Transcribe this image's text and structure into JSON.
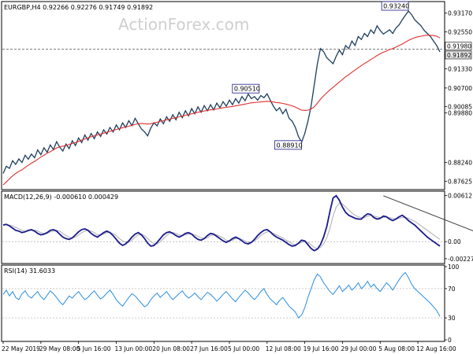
{
  "watermark": "ActionForex.com",
  "chart_data": [
    {
      "panel": "price",
      "type": "line",
      "title": "EURGBP,H4  0.92266 0.92276 0.91749 0.91892",
      "ylim": [
        0.874,
        0.935
      ],
      "yticks": [
        "0.93170",
        "0.92550",
        "0.91330",
        "0.90700",
        "0.90085",
        "0.89880",
        "0.88240",
        "0.87625"
      ],
      "ytick_values": [
        0.9317,
        0.9255,
        0.9133,
        0.907,
        0.90085,
        0.8988,
        0.8824,
        0.87625
      ],
      "price_tags": [
        "0.91980",
        "0.91892"
      ],
      "price_tag_values": [
        0.9198,
        0.91892
      ],
      "hline": 0.9198,
      "annotations": [
        {
          "text": "0.93240",
          "x": 130,
          "y": 0.9324
        },
        {
          "text": "0.90510",
          "x": 82,
          "y": 0.9051
        },
        {
          "text": "0.88910",
          "x": 96,
          "y": 0.8891
        }
      ],
      "series": [
        {
          "color": "#1f3f5f",
          "values": [
            0.8788,
            0.8812,
            0.8805,
            0.883,
            0.8818,
            0.8836,
            0.8824,
            0.8848,
            0.8835,
            0.8852,
            0.884,
            0.8866,
            0.885,
            0.8873,
            0.8858,
            0.8882,
            0.8867,
            0.8893,
            0.8875,
            0.8862,
            0.8885,
            0.887,
            0.8896,
            0.888,
            0.8905,
            0.889,
            0.8915,
            0.8898,
            0.892,
            0.8903,
            0.8925,
            0.891,
            0.8932,
            0.8918,
            0.894,
            0.8925,
            0.8948,
            0.8932,
            0.8955,
            0.894,
            0.8962,
            0.8946,
            0.897,
            0.8952,
            0.8935,
            0.8925,
            0.8912,
            0.8938,
            0.8955,
            0.8945,
            0.8968,
            0.8952,
            0.8975,
            0.896,
            0.8982,
            0.8965,
            0.899,
            0.8972,
            0.8995,
            0.8978,
            0.9002,
            0.8985,
            0.9008,
            0.899,
            0.9012,
            0.8995,
            0.9015,
            0.8998,
            0.902,
            0.9005,
            0.9025,
            0.901,
            0.903,
            0.9015,
            0.9035,
            0.902,
            0.9042,
            0.9028,
            0.905,
            0.9035,
            0.9042,
            0.903,
            0.9045,
            0.9038,
            0.9051,
            0.903,
            0.901,
            0.8995,
            0.9005,
            0.8985,
            0.9,
            0.897,
            0.896,
            0.894,
            0.891,
            0.8891,
            0.892,
            0.896,
            0.901,
            0.908,
            0.915,
            0.92,
            0.919,
            0.917,
            0.916,
            0.915,
            0.9175,
            0.9195,
            0.918,
            0.921,
            0.92,
            0.9225,
            0.921,
            0.924,
            0.923,
            0.925,
            0.924,
            0.9262,
            0.925,
            0.9275,
            0.926,
            0.9248,
            0.9255,
            0.9262,
            0.925,
            0.9268,
            0.9278,
            0.9295,
            0.931,
            0.9324,
            0.9312,
            0.9295,
            0.9285,
            0.9275,
            0.926,
            0.925,
            0.924,
            0.9225,
            0.921,
            0.9189
          ]
        },
        {
          "name": "",
          "color": "#e03030",
          "values": [
            0.875,
            0.876,
            0.877,
            0.878,
            0.8788,
            0.8795,
            0.88,
            0.8808,
            0.8815,
            0.8822,
            0.8828,
            0.8835,
            0.8842,
            0.8848,
            0.8855,
            0.886,
            0.8866,
            0.8872,
            0.8876,
            0.8878,
            0.888,
            0.8884,
            0.8887,
            0.889,
            0.8894,
            0.8898,
            0.8902,
            0.8906,
            0.8909,
            0.8912,
            0.8915,
            0.8918,
            0.8921,
            0.8924,
            0.8927,
            0.893,
            0.8933,
            0.8936,
            0.8939,
            0.8941,
            0.8944,
            0.8947,
            0.895,
            0.8952,
            0.8953,
            0.8952,
            0.8951,
            0.8952,
            0.8955,
            0.8957,
            0.896,
            0.8962,
            0.8965,
            0.8967,
            0.897,
            0.8972,
            0.8975,
            0.8977,
            0.898,
            0.8982,
            0.8985,
            0.8987,
            0.899,
            0.8992,
            0.8994,
            0.8996,
            0.8998,
            0.8999,
            0.9001,
            0.9003,
            0.9005,
            0.9006,
            0.9008,
            0.9009,
            0.9011,
            0.9013,
            0.9015,
            0.9017,
            0.9019,
            0.9021,
            0.9022,
            0.9023,
            0.9024,
            0.9025,
            0.9026,
            0.9025,
            0.9024,
            0.9022,
            0.9021,
            0.9019,
            0.9017,
            0.9014,
            0.9011,
            0.9007,
            0.9002,
            0.8997,
            0.8996,
            0.8997,
            0.9001,
            0.9008,
            0.902,
            0.9033,
            0.9044,
            0.9054,
            0.9064,
            0.9072,
            0.9081,
            0.909,
            0.9098,
            0.9107,
            0.9114,
            0.9122,
            0.9129,
            0.9137,
            0.9144,
            0.9151,
            0.9157,
            0.9164,
            0.917,
            0.9177,
            0.9183,
            0.9188,
            0.9192,
            0.9197,
            0.92,
            0.9205,
            0.921,
            0.9215,
            0.9221,
            0.9227,
            0.9232,
            0.9236,
            0.9239,
            0.9241,
            0.9243,
            0.9244,
            0.9244,
            0.9243,
            0.9241,
            0.9235
          ]
        }
      ]
    },
    {
      "panel": "macd",
      "type": "line",
      "title": "MACD(12,26,9) -0.000610 0.000429",
      "ylim": [
        -0.0027,
        0.0065
      ],
      "yticks": [
        "0.00612",
        "0.00",
        "-0.002273"
      ],
      "ytick_values": [
        0.00612,
        0.0,
        -0.002273
      ],
      "trendline": {
        "x": [
          121,
          150
        ],
        "y": [
          0.0061,
          0.0022
        ]
      },
      "series": [
        {
          "color": "#1a1a8c",
          "values": [
            0.0022,
            0.0023,
            0.0021,
            0.0018,
            0.0015,
            0.0014,
            0.0012,
            0.0013,
            0.0015,
            0.0016,
            0.0014,
            0.0011,
            0.0009,
            0.001,
            0.0012,
            0.0015,
            0.0016,
            0.0014,
            0.001,
            0.0006,
            0.0004,
            0.0003,
            0.0005,
            0.0009,
            0.0013,
            0.0016,
            0.0017,
            0.0015,
            0.0011,
            0.0008,
            0.0006,
            0.0009,
            0.0012,
            0.0014,
            0.0012,
            0.0008,
            0.0003,
            -0.0002,
            -0.0005,
            -0.0003,
            0.0001,
            0.0006,
            0.001,
            0.0012,
            0.0009,
            0.0004,
            -0.0002,
            -0.0006,
            -0.0005,
            -0.0001,
            0.0004,
            0.0009,
            0.0012,
            0.0013,
            0.0011,
            0.0008,
            0.0006,
            0.0008,
            0.0011,
            0.0012,
            0.001,
            0.0006,
            0.0003,
            0.0002,
            0.0004,
            0.0008,
            0.0011,
            0.001,
            0.0007,
            0.0004,
            0.0001,
            -0.0001,
            0.0001,
            0.0004,
            0.0006,
            0.0004,
            0.0001,
            -0.0002,
            -0.0003,
            -0.0001,
            0.0003,
            0.0008,
            0.0012,
            0.0015,
            0.0016,
            0.0013,
            0.0009,
            0.0006,
            0.0004,
            0.0002,
            -0.0001,
            -0.0004,
            -0.0006,
            -0.0005,
            -0.0002,
            0.0002,
            0.0001,
            -0.0004,
            -0.0009,
            -0.0012,
            -0.001,
            -0.0004,
            0.0006,
            0.002,
            0.004,
            0.0058,
            0.0061,
            0.0055,
            0.0046,
            0.0039,
            0.0035,
            0.0033,
            0.0031,
            0.003,
            0.003,
            0.0034,
            0.0037,
            0.0036,
            0.0032,
            0.003,
            0.0031,
            0.0034,
            0.0033,
            0.003,
            0.0028,
            0.003,
            0.0033,
            0.0035,
            0.0032,
            0.0028,
            0.0025,
            0.0022,
            0.0018,
            0.0014,
            0.001,
            0.0006,
            0.0003,
            0.0,
            -0.0003,
            -0.0006
          ]
        },
        {
          "color": "#b4b4b4",
          "values": [
            0.0023,
            0.0023,
            0.0022,
            0.0021,
            0.0019,
            0.0017,
            0.0015,
            0.0014,
            0.0014,
            0.0015,
            0.0015,
            0.0014,
            0.0012,
            0.0011,
            0.0011,
            0.0013,
            0.0014,
            0.0015,
            0.0014,
            0.0011,
            0.0008,
            0.0006,
            0.0005,
            0.0006,
            0.0009,
            0.0012,
            0.0014,
            0.0015,
            0.0014,
            0.0012,
            0.0009,
            0.0009,
            0.001,
            0.0012,
            0.0012,
            0.0011,
            0.0008,
            0.0004,
            0.0001,
            -0.0001,
            -0.0001,
            0.0002,
            0.0006,
            0.0009,
            0.001,
            0.0008,
            0.0004,
            0.0,
            -0.0003,
            -0.0003,
            0.0,
            0.0004,
            0.0008,
            0.0011,
            0.0012,
            0.0011,
            0.0009,
            0.0008,
            0.0009,
            0.001,
            0.001,
            0.0009,
            0.0007,
            0.0005,
            0.0004,
            0.0005,
            0.0008,
            0.0009,
            0.0009,
            0.0007,
            0.0005,
            0.0002,
            0.0001,
            0.0002,
            0.0004,
            0.0004,
            0.0003,
            0.0001,
            -0.0001,
            -0.0001,
            0.0001,
            0.0004,
            0.0008,
            0.0011,
            0.0013,
            0.0013,
            0.0011,
            0.0009,
            0.0007,
            0.0005,
            0.0002,
            0.0,
            -0.0003,
            -0.0004,
            -0.0003,
            -0.0001,
            0.0,
            -0.0001,
            -0.0004,
            -0.0008,
            -0.0009,
            -0.0008,
            -0.0003,
            0.0005,
            0.0018,
            0.0034,
            0.0046,
            0.0051,
            0.005,
            0.0046,
            0.0042,
            0.0038,
            0.0035,
            0.0033,
            0.0032,
            0.0032,
            0.0034,
            0.0035,
            0.0034,
            0.0033,
            0.0032,
            0.0032,
            0.0033,
            0.0032,
            0.0031,
            0.003,
            0.0031,
            0.0032,
            0.0032,
            0.0031,
            0.0029,
            0.0027,
            0.0024,
            0.0021,
            0.0018,
            0.0015,
            0.0012,
            0.0009,
            0.0006,
            0.0003
          ]
        }
      ]
    },
    {
      "panel": "rsi",
      "type": "line",
      "title": "RSI(14) 31.6033",
      "ylim": [
        0,
        100
      ],
      "yticks": [
        "100",
        "70",
        "30",
        "0"
      ],
      "ytick_values": [
        100,
        70,
        30,
        0
      ],
      "levels": [
        70,
        30
      ],
      "series": [
        {
          "color": "#2a8ee0",
          "values": [
            62,
            68,
            60,
            66,
            58,
            55,
            63,
            67,
            60,
            57,
            62,
            66,
            59,
            55,
            61,
            67,
            63,
            58,
            52,
            48,
            54,
            60,
            57,
            62,
            66,
            60,
            55,
            58,
            63,
            67,
            61,
            56,
            59,
            64,
            68,
            62,
            55,
            50,
            46,
            52,
            58,
            63,
            60,
            55,
            50,
            45,
            48,
            55,
            60,
            64,
            58,
            62,
            66,
            60,
            55,
            59,
            63,
            67,
            61,
            57,
            60,
            64,
            59,
            55,
            60,
            65,
            62,
            58,
            53,
            57,
            62,
            66,
            61,
            56,
            52,
            58,
            63,
            68,
            64,
            59,
            55,
            60,
            66,
            70,
            62,
            56,
            52,
            48,
            54,
            58,
            52,
            46,
            42,
            38,
            30,
            34,
            44,
            58,
            70,
            82,
            90,
            86,
            78,
            72,
            66,
            62,
            68,
            74,
            66,
            70,
            75,
            68,
            72,
            78,
            70,
            74,
            80,
            72,
            76,
            70,
            66,
            72,
            78,
            74,
            68,
            75,
            82,
            88,
            92,
            85,
            76,
            70,
            66,
            62,
            58,
            54,
            50,
            45,
            40,
            32
          ]
        }
      ]
    }
  ],
  "x_axis": {
    "labels": [
      "22 May 2019",
      "29 May 08:00",
      "5 Jun 16:00",
      "13 Jun 00:00",
      "20 Jun 08:00",
      "27 Jun 16:00",
      "5 Jul 00:00",
      "12 Jul 08:00",
      "19 Jul 16:00",
      "29 Jul 00:00",
      "5 Aug 08:00",
      "12 Aug 16:00"
    ],
    "positions": [
      0,
      12,
      24,
      36,
      48,
      60,
      72,
      84,
      96,
      108,
      120,
      132
    ]
  }
}
